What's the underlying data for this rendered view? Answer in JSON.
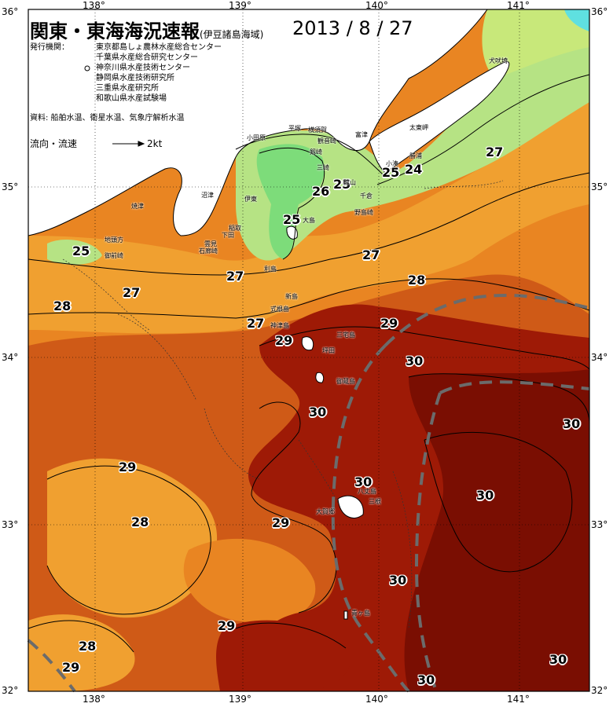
{
  "header": {
    "title": "関東・東海海況速報",
    "subtitle": "(伊豆諸島海域)",
    "date": "2013 / 8 / 27"
  },
  "info": {
    "issuer_label": "発行機関：",
    "issuers": [
      "東京都島しょ農林水産総合センター",
      "千葉県水産総合研究センター",
      "神奈川県水産技術センター",
      "静岡県水産技術研究所",
      "三重県水産研究所",
      "和歌山県水産試験場"
    ],
    "source": "資料: 船舶水温、衛星水温、気象庁解析水温",
    "current_label": "流向・流速",
    "current_speed": "2kt"
  },
  "axes": {
    "lon_top": [
      "138°",
      "139°",
      "140°",
      "141°"
    ],
    "lon_bottom": [
      "138°",
      "139°",
      "140°",
      "141°"
    ],
    "lat_left": [
      "36°",
      "35°",
      "34°",
      "33°",
      "32°"
    ],
    "lat_right": [
      "36°",
      "35°",
      "34°",
      "33°",
      "32°"
    ]
  },
  "isotherm_labels": [
    "25",
    "27",
    "28",
    "27",
    "27",
    "29",
    "27",
    "25",
    "26",
    "25",
    "25",
    "24",
    "27",
    "28",
    "29",
    "30",
    "30",
    "29",
    "28",
    "29",
    "30",
    "30",
    "30",
    "30",
    "29",
    "28",
    "29",
    "30",
    "30"
  ],
  "places": [
    "犬吠埼",
    "太東岬",
    "勝浦",
    "小湊",
    "千倉",
    "館山",
    "野島崎",
    "富津",
    "横須賀",
    "観音崎",
    "剱崎",
    "三崎",
    "平塚",
    "小田原",
    "伊東",
    "稲取",
    "下田",
    "石廊崎",
    "雲見",
    "沼津",
    "焼津",
    "地頭方",
    "御前崎",
    "大島",
    "利島",
    "新島",
    "式根島",
    "神津島",
    "三宅島",
    "坪田",
    "御蔵島",
    "八丈島",
    "三根",
    "大賀郷",
    "青ヶ島"
  ],
  "colors": {
    "t24": "#c8e87a",
    "t25": "#7ddc7a",
    "t26": "#b6e384",
    "t27": "#f0a030",
    "t28": "#e98522",
    "t29": "#cf5a17",
    "t30": "#9e1a06",
    "t30plus": "#7a0e02",
    "kuroshio": "#6b6b6b"
  }
}
